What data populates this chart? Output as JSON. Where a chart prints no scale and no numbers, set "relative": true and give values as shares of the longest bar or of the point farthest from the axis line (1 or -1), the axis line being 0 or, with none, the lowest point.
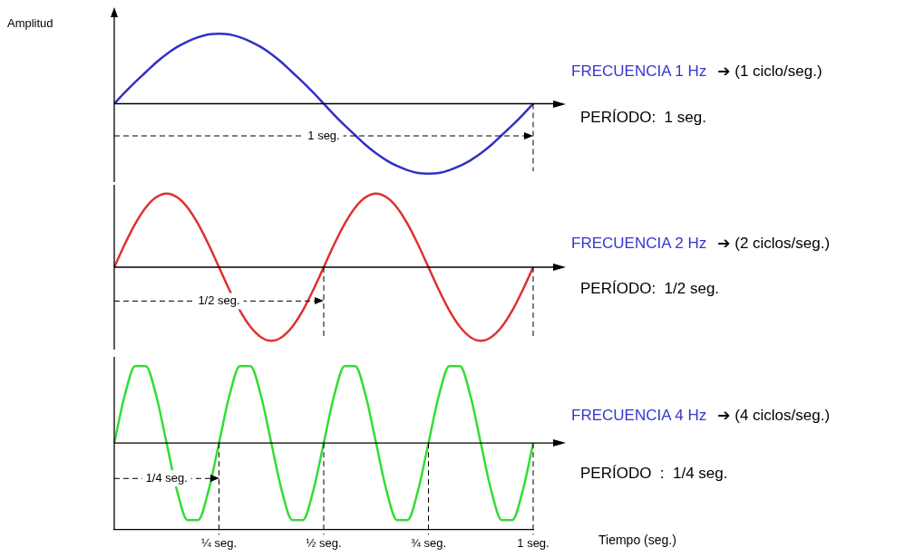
{
  "chart_data": [
    {
      "type": "line",
      "ylabel": "Amplitud",
      "relative": true,
      "tick_labels": false,
      "categories": [
        null,
        null,
        null,
        null,
        null,
        null,
        null,
        null,
        null,
        null,
        "¼ seg.",
        null,
        null,
        null,
        null,
        null,
        null,
        null,
        null,
        null,
        "½ seg.",
        null,
        null,
        null,
        null,
        null,
        null,
        null,
        null,
        null,
        "¾ seg.",
        null,
        null,
        null,
        null,
        null,
        null,
        null,
        null,
        null,
        "1 seg."
      ],
      "series": [
        {
          "color": "#3030c8",
          "values": [
            0,
            0.16,
            0.31,
            0.45,
            0.59,
            0.71,
            0.81,
            0.89,
            0.95,
            0.99,
            1,
            0.99,
            0.95,
            0.89,
            0.81,
            0.71,
            0.59,
            0.45,
            0.31,
            0.16,
            0,
            -0.16,
            -0.31,
            -0.45,
            -0.59,
            -0.71,
            -0.81,
            -0.89,
            -0.95,
            -0.99,
            -1,
            -0.99,
            -0.95,
            -0.89,
            -0.81,
            -0.71,
            -0.59,
            -0.45,
            -0.31,
            -0.16,
            0
          ]
        }
      ],
      "ref_lines": [
        {
          "axis": "x",
          "value": "1 seg.",
          "line_style": "dashed"
        },
        {
          "axis": "y",
          "value": -0.46,
          "label": "1 seg.",
          "line_style": "dashed"
        }
      ],
      "annotations": [
        "FRECUENCIA 1 Hz",
        "➔ (1 ciclo/seg.)",
        "PERÍODO:  1 seg."
      ]
    },
    {
      "type": "line",
      "relative": true,
      "tick_labels": false,
      "categories": [
        null,
        null,
        null,
        null,
        null,
        null,
        null,
        null,
        null,
        null,
        "¼ seg.",
        null,
        null,
        null,
        null,
        null,
        null,
        null,
        null,
        null,
        "½ seg.",
        null,
        null,
        null,
        null,
        null,
        null,
        null,
        null,
        null,
        "¾ seg.",
        null,
        null,
        null,
        null,
        null,
        null,
        null,
        null,
        null,
        "1 seg."
      ],
      "series": [
        {
          "color": "#e03030",
          "values": [
            0,
            0.31,
            0.59,
            0.81,
            0.95,
            1,
            0.95,
            0.81,
            0.59,
            0.31,
            0,
            -0.31,
            -0.59,
            -0.81,
            -0.95,
            -1,
            -0.95,
            -0.81,
            -0.59,
            -0.31,
            0,
            0.31,
            0.59,
            0.81,
            0.95,
            1,
            0.95,
            0.81,
            0.59,
            0.31,
            0,
            -0.31,
            -0.59,
            -0.81,
            -0.95,
            -1,
            -0.95,
            -0.81,
            -0.59,
            -0.31,
            0
          ]
        }
      ],
      "ref_lines": [
        {
          "axis": "x",
          "value": "½ seg.",
          "line_style": "dashed"
        },
        {
          "axis": "x",
          "value": "1 seg.",
          "line_style": "dashed"
        },
        {
          "axis": "y",
          "value": -0.46,
          "label": "1/2 seg.",
          "line_style": "dashed"
        }
      ],
      "annotations": [
        "FRECUENCIA 2 Hz",
        "➔ (2 ciclos/seg.)",
        "PERÍODO:  1/2 seg."
      ]
    },
    {
      "type": "line",
      "relative": true,
      "tick_labels": "x",
      "xlabel": "Tiempo  (seg.)",
      "categories": [
        null,
        null,
        null,
        null,
        null,
        null,
        null,
        null,
        null,
        null,
        "¼ seg.",
        null,
        null,
        null,
        null,
        null,
        null,
        null,
        null,
        null,
        "½ seg.",
        null,
        null,
        null,
        null,
        null,
        null,
        null,
        null,
        null,
        "¾ seg.",
        null,
        null,
        null,
        null,
        null,
        null,
        null,
        null,
        null,
        "1 seg."
      ],
      "series": [
        {
          "color": "#33dd33",
          "values": [
            0,
            0.62,
            1,
            1,
            0.62,
            0,
            -0.62,
            -1,
            -1,
            -0.62,
            0,
            0.62,
            1,
            1,
            0.62,
            0,
            -0.62,
            -1,
            -1,
            -0.62,
            0,
            0.62,
            1,
            1,
            0.62,
            0,
            -0.62,
            -1,
            -1,
            -0.62,
            0,
            0.62,
            1,
            1,
            0.62,
            0,
            -0.62,
            -1,
            -1,
            -0.62,
            0
          ]
        }
      ],
      "ref_lines": [
        {
          "axis": "x",
          "value": "¼ seg.",
          "line_style": "dashed"
        },
        {
          "axis": "x",
          "value": "½ seg.",
          "line_style": "dashed"
        },
        {
          "axis": "x",
          "value": "¾ seg.",
          "line_style": "dashed"
        },
        {
          "axis": "x",
          "value": "1 seg.",
          "line_style": "dashed"
        },
        {
          "axis": "y",
          "value": -0.46,
          "label": "1/4 seg.",
          "line_style": "dashed"
        }
      ],
      "annotations": [
        "FRECUENCIA 4 Hz",
        "➔ (4 ciclos/seg.)",
        "PERÍODO  :  1/4 seg."
      ]
    }
  ]
}
